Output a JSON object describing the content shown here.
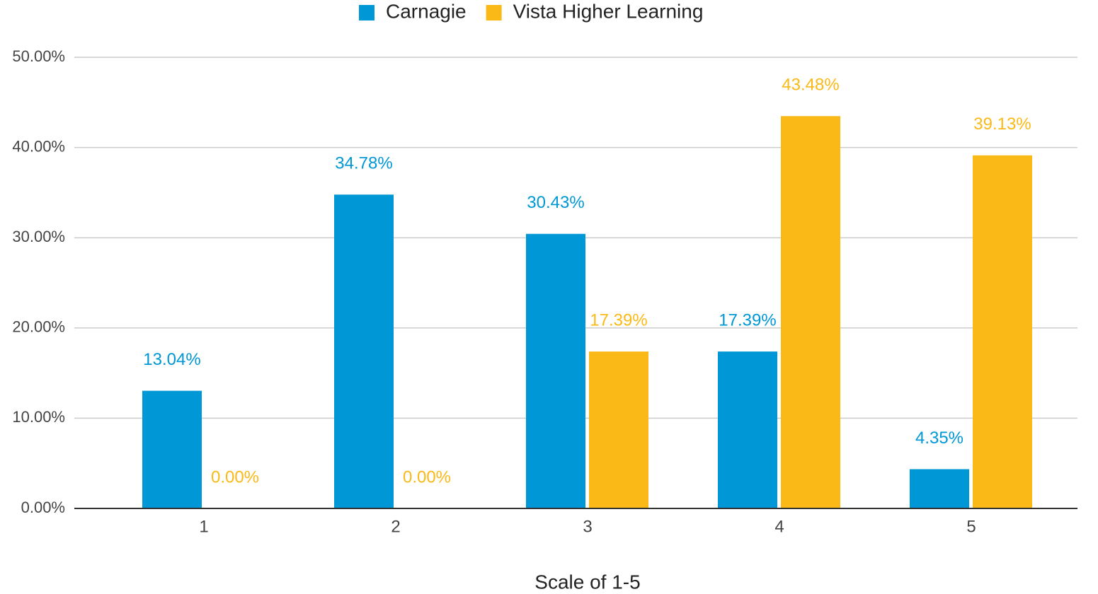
{
  "chart_data": {
    "type": "bar",
    "x_label": "Scale of 1-5",
    "categories": [
      "1",
      "2",
      "3",
      "4",
      "5"
    ],
    "series": [
      {
        "name": "Carnagie",
        "color": "#0097d6",
        "values": [
          13.04,
          34.78,
          30.43,
          17.39,
          4.35
        ],
        "value_labels": [
          "13.04%",
          "34.78%",
          "30.43%",
          "17.39%",
          "4.35%"
        ]
      },
      {
        "name": "Vista Higher Learning",
        "color": "#fbb917",
        "values": [
          0,
          0,
          17.39,
          43.48,
          39.13
        ],
        "value_labels": [
          "0.00%",
          "0.00%",
          "17.39%",
          "43.48%",
          "39.13%"
        ]
      }
    ],
    "ylim": [
      0,
      50
    ],
    "yticks": [
      {
        "value": 0,
        "label": "0.00%"
      },
      {
        "value": 10,
        "label": "10.00%"
      },
      {
        "value": 20,
        "label": "20.00%"
      },
      {
        "value": 30,
        "label": "30.00%"
      },
      {
        "value": 40,
        "label": "40.00%"
      },
      {
        "value": 50,
        "label": "50.00%"
      }
    ],
    "grid": true,
    "legend": "top"
  }
}
